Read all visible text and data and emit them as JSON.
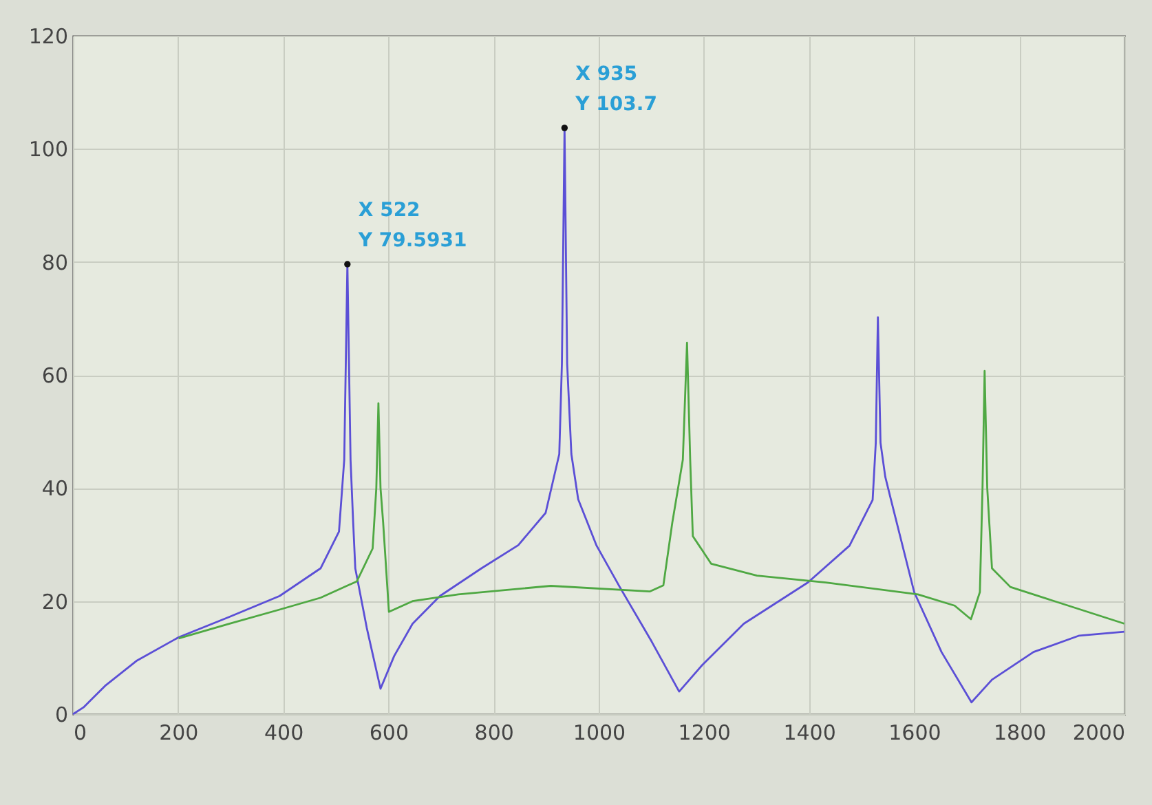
{
  "chart_data": {
    "type": "line",
    "xlim": [
      0,
      2000
    ],
    "xticks": [
      0,
      200,
      400,
      600,
      800,
      1000,
      1200,
      1400,
      1600,
      1800,
      2000
    ],
    "ylim": [
      0,
      120
    ],
    "yticks": [
      0,
      20,
      40,
      60,
      80,
      100,
      120
    ],
    "grid": true,
    "marker": "none",
    "line_style": "solid",
    "series": [
      {
        "color": "#5b4fd6",
        "x": [
          0,
          20,
          61,
          122,
          201,
          297,
          393,
          471,
          506,
          516,
          522,
          528,
          533,
          537,
          559,
          585,
          611,
          646,
          698,
          777,
          847,
          899,
          925,
          930,
          935,
          940,
          948,
          961,
          996,
          1040,
          1101,
          1153,
          1197,
          1276,
          1398,
          1477,
          1521,
          1527,
          1531,
          1536,
          1545,
          1556,
          1600,
          1652,
          1709,
          1748,
          1827,
          1914,
          2000
        ],
        "values": [
          0,
          1.2,
          5,
          9.5,
          13.6,
          17.2,
          20.9,
          25.8,
          32.3,
          45,
          79.5931,
          45,
          33.9,
          25.8,
          15.2,
          4.5,
          10.3,
          16,
          20.9,
          25.8,
          29.9,
          35.6,
          46,
          62,
          103.7,
          62,
          46,
          38,
          29.8,
          22.5,
          12.8,
          4,
          8.7,
          16,
          23.3,
          29.8,
          37.9,
          48,
          70.2,
          48,
          42,
          37.9,
          21.6,
          11,
          2.1,
          6.1,
          11,
          13.9,
          14.6
        ]
      },
      {
        "color": "#4fa843",
        "x": [
          201,
          297,
          393,
          471,
          540,
          570,
          577,
          581,
          585,
          590,
          601,
          646,
          733,
          909,
          1097,
          1123,
          1140,
          1160,
          1168,
          1174,
          1179,
          1214,
          1301,
          1432,
          1607,
          1677,
          1708,
          1725,
          1730,
          1734,
          1739,
          1748,
          1783,
          2000
        ],
        "values": [
          13.4,
          16,
          18.5,
          20.6,
          23.5,
          29.3,
          40,
          55,
          40,
          33.9,
          18.1,
          20,
          21.2,
          22.7,
          21.7,
          22.8,
          33.9,
          45,
          65.7,
          45,
          31.5,
          26.6,
          24.5,
          23.3,
          21.2,
          19.2,
          16.8,
          21.6,
          40,
          60.7,
          40,
          25.8,
          22.5,
          16
        ]
      }
    ],
    "annotations": [
      {
        "text": "X 522\nY 79.5931",
        "x": 522,
        "y": 79.5931
      },
      {
        "text": "X 935\nY 103.7",
        "x": 935,
        "y": 103.7
      }
    ]
  }
}
